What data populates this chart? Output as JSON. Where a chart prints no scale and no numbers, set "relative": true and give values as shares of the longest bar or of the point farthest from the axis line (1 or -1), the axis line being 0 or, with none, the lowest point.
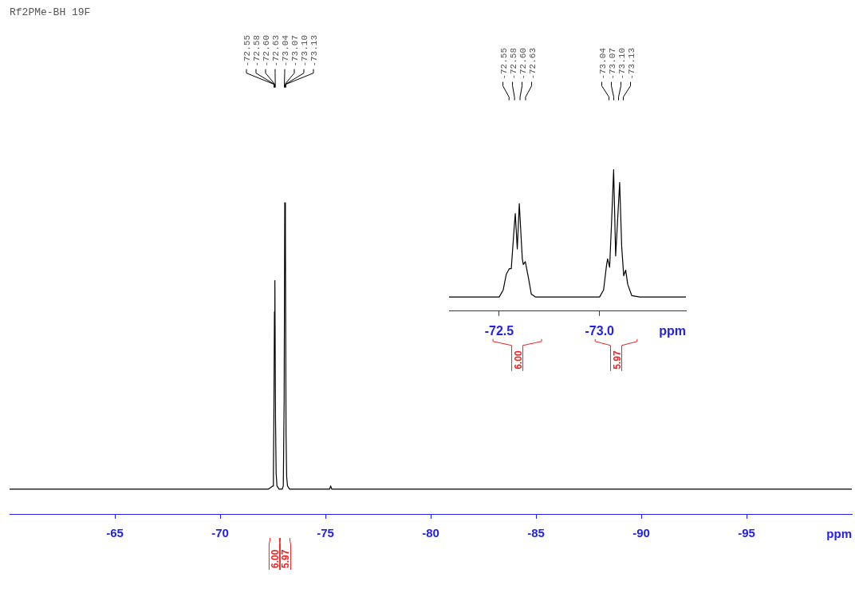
{
  "chart_data": [
    {
      "type": "line",
      "title": "Rf2PMe-BH 19F",
      "xlabel": "ppm",
      "relative": true,
      "xlim": [
        -60,
        -100
      ],
      "grid": false,
      "legend": false,
      "marker": "none",
      "line_style": "solid",
      "tick_labels": "x",
      "xticks": [
        -65,
        -70,
        -75,
        -80,
        -85,
        -90,
        -95
      ],
      "series": [
        {
          "color": "#000000",
          "x": [
            -60,
            -72.3,
            -72.5,
            -72.53,
            -72.55,
            -72.58,
            -72.6,
            -72.63,
            -72.66,
            -72.7,
            -72.8,
            -72.95,
            -73.0,
            -73.04,
            -73.07,
            -73.1,
            -73.13,
            -73.16,
            -73.2,
            -73.3,
            -75.2,
            -75.25,
            -75.3,
            -100
          ],
          "values": [
            0.08,
            0.08,
            0.09,
            0.13,
            0.28,
            0.65,
            0.75,
            0.31,
            0.13,
            0.09,
            0.08,
            0.08,
            0.09,
            0.36,
            1,
            0.91,
            0.26,
            0.12,
            0.09,
            0.08,
            0.08,
            0.09,
            0.08,
            0.08
          ]
        }
      ],
      "annotations": [
        "-72.55",
        "-72.58",
        "-72.60",
        "-72.63",
        "-73.04",
        "-73.07",
        "-73.10",
        "-73.13",
        "6.00",
        "5.97"
      ]
    },
    {
      "type": "line",
      "xlabel": "ppm",
      "relative": true,
      "xlim": [
        -72.25,
        -73.43
      ],
      "grid": false,
      "legend": false,
      "marker": "none",
      "line_style": "solid",
      "tick_labels": "x",
      "xticks": [
        -72.5,
        {
          "value": -73,
          "label": "-73.0"
        }
      ],
      "series": [
        {
          "color": "#000000",
          "x": [
            -72.25,
            -72.45,
            -72.5,
            -72.52,
            -72.535,
            -72.55,
            -72.56,
            -72.575,
            -72.58,
            -72.59,
            -72.6,
            -72.615,
            -72.62,
            -72.63,
            -72.645,
            -72.66,
            -72.68,
            -72.95,
            -73.0,
            -73.02,
            -73.035,
            -73.04,
            -73.05,
            -73.06,
            -73.07,
            -73.08,
            -73.1,
            -73.11,
            -73.12,
            -73.13,
            -73.14,
            -73.16,
            -73.2,
            -73.43
          ],
          "values": [
            0.1,
            0.1,
            0.1,
            0.15,
            0.26,
            0.3,
            0.3,
            0.6,
            0.69,
            0.44,
            0.76,
            0.37,
            0.33,
            0.35,
            0.24,
            0.12,
            0.1,
            0.1,
            0.1,
            0.15,
            0.33,
            0.37,
            0.31,
            0.64,
            1,
            0.39,
            0.91,
            0.46,
            0.25,
            0.29,
            0.19,
            0.11,
            0.1,
            0.1
          ]
        }
      ],
      "annotations": [
        "-72.55",
        "-72.58",
        "-72.60",
        "-72.63",
        "-73.04",
        "-73.07",
        "-73.10",
        "-73.13",
        "6.00",
        "5.97"
      ]
    }
  ]
}
